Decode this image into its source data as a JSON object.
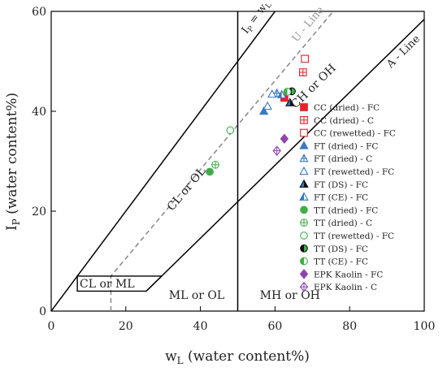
{
  "chart_data": {
    "type": "scatter",
    "xlabel": "wL (water content%)",
    "ylabel": "IP (water content%)",
    "xlim": [
      0,
      100
    ],
    "ylim": [
      0,
      60
    ],
    "x_ticks": [
      0,
      20,
      40,
      60,
      80,
      100
    ],
    "y_ticks": [
      0,
      20,
      40,
      60
    ],
    "legend_position": "right",
    "lines": [
      {
        "name": "A - Line",
        "label": "A - Line",
        "points": [
          [
            25.5,
            4
          ],
          [
            100,
            58.4
          ]
        ],
        "style": "solid"
      },
      {
        "name": "U - Line",
        "label": "U - Line",
        "points": [
          [
            16,
            0
          ],
          [
            16,
            7
          ],
          [
            75.6,
            60
          ]
        ],
        "style": "dashed"
      },
      {
        "name": "Ip = wL",
        "label": "IP = wL",
        "points": [
          [
            0,
            0
          ],
          [
            60,
            60
          ]
        ],
        "style": "solid"
      },
      {
        "name": "wL = 50",
        "points": [
          [
            50,
            0
          ],
          [
            50,
            60
          ]
        ],
        "style": "solid"
      }
    ],
    "region_labels": [
      {
        "text": "CL or ML",
        "x": 15,
        "y": 4.7
      },
      {
        "text": "ML or OL",
        "x": 39,
        "y": 2.4
      },
      {
        "text": "MH or OH",
        "x": 64,
        "y": 2.4
      },
      {
        "text": "CL or OL",
        "x": 37,
        "y": 24,
        "rotate": true
      },
      {
        "text": "CH or OH",
        "x": 71,
        "y": 44.5,
        "rotate": true
      }
    ],
    "series": [
      {
        "name": "CC (dried) - FC",
        "marker": "square-filled",
        "color": "#e8202a",
        "points": [
          [
            62.5,
            42.7
          ]
        ]
      },
      {
        "name": "CC (dried) - C",
        "marker": "square-cross",
        "color": "#e8202a",
        "points": [
          [
            67.5,
            47.8
          ]
        ]
      },
      {
        "name": "CC (rewetted) - FC",
        "marker": "square-open",
        "color": "#e8202a",
        "points": [
          [
            68,
            50.5
          ]
        ]
      },
      {
        "name": "FT (dried) - FC",
        "marker": "triangle-filled",
        "color": "#3a78c2",
        "points": [
          [
            57,
            40
          ]
        ]
      },
      {
        "name": "FT (dried) - C",
        "marker": "triangle-cross",
        "color": "#3a78c2",
        "points": [
          [
            60.5,
            43.6
          ]
        ]
      },
      {
        "name": "FT (rewetted) - FC",
        "marker": "triangle-open",
        "color": "#3a78c2",
        "points": [
          [
            58,
            41
          ],
          [
            59.2,
            43.4
          ]
        ]
      },
      {
        "name": "FT (DS) - FC",
        "marker": "triangle-half-dark",
        "color": "#1b2e5c",
        "points": [
          [
            64,
            41.7
          ]
        ]
      },
      {
        "name": "FT (CE) - FC",
        "marker": "triangle-half",
        "color": "#3a78c2",
        "points": [
          [
            61.8,
            43.3
          ]
        ]
      },
      {
        "name": "TT (dried) - FC",
        "marker": "circle-filled",
        "color": "#3fae49",
        "points": [
          [
            42.5,
            27.9
          ]
        ]
      },
      {
        "name": "TT (dried) - C",
        "marker": "circle-cross",
        "color": "#3fae49",
        "points": [
          [
            44,
            29.3
          ]
        ]
      },
      {
        "name": "TT (rewetted) - FC",
        "marker": "circle-open",
        "color": "#3fae49",
        "points": [
          [
            48,
            36.2
          ]
        ]
      },
      {
        "name": "TT (DS) - FC",
        "marker": "circle-half-dark",
        "color": "#3fae49",
        "points": [
          [
            64.5,
            44
          ]
        ]
      },
      {
        "name": "TT (CE) - FC",
        "marker": "circle-half",
        "color": "#3fae49",
        "points": [
          [
            63.3,
            43.9
          ]
        ]
      },
      {
        "name": "EPK Kaolin - FC",
        "marker": "diamond-filled",
        "color": "#8e44ad",
        "points": [
          [
            62.5,
            34.5
          ]
        ]
      },
      {
        "name": "EPK Kaolin - C",
        "marker": "diamond-cross",
        "color": "#8e44ad",
        "points": [
          [
            60.5,
            32.1
          ]
        ]
      }
    ]
  }
}
